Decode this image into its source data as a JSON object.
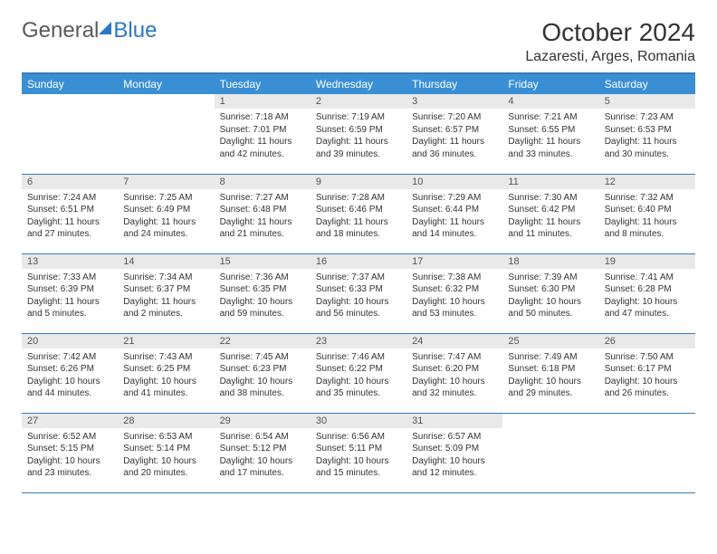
{
  "logo": {
    "part1": "General",
    "part2": "Blue"
  },
  "title": "October 2024",
  "location": "Lazaresti, Arges, Romania",
  "day_headers": [
    "Sunday",
    "Monday",
    "Tuesday",
    "Wednesday",
    "Thursday",
    "Friday",
    "Saturday"
  ],
  "colors": {
    "header_bg": "#3a8fd4",
    "header_text": "#ffffff",
    "rule": "#3a7ab8",
    "daynum_bg": "#e9e9e9",
    "logo_blue": "#2b78c5"
  },
  "weeks": [
    [
      {
        "n": "",
        "sr": "",
        "ss": "",
        "dl": "",
        "empty": true
      },
      {
        "n": "",
        "sr": "",
        "ss": "",
        "dl": "",
        "empty": true
      },
      {
        "n": "1",
        "sr": "Sunrise: 7:18 AM",
        "ss": "Sunset: 7:01 PM",
        "dl": "Daylight: 11 hours and 42 minutes."
      },
      {
        "n": "2",
        "sr": "Sunrise: 7:19 AM",
        "ss": "Sunset: 6:59 PM",
        "dl": "Daylight: 11 hours and 39 minutes."
      },
      {
        "n": "3",
        "sr": "Sunrise: 7:20 AM",
        "ss": "Sunset: 6:57 PM",
        "dl": "Daylight: 11 hours and 36 minutes."
      },
      {
        "n": "4",
        "sr": "Sunrise: 7:21 AM",
        "ss": "Sunset: 6:55 PM",
        "dl": "Daylight: 11 hours and 33 minutes."
      },
      {
        "n": "5",
        "sr": "Sunrise: 7:23 AM",
        "ss": "Sunset: 6:53 PM",
        "dl": "Daylight: 11 hours and 30 minutes."
      }
    ],
    [
      {
        "n": "6",
        "sr": "Sunrise: 7:24 AM",
        "ss": "Sunset: 6:51 PM",
        "dl": "Daylight: 11 hours and 27 minutes."
      },
      {
        "n": "7",
        "sr": "Sunrise: 7:25 AM",
        "ss": "Sunset: 6:49 PM",
        "dl": "Daylight: 11 hours and 24 minutes."
      },
      {
        "n": "8",
        "sr": "Sunrise: 7:27 AM",
        "ss": "Sunset: 6:48 PM",
        "dl": "Daylight: 11 hours and 21 minutes."
      },
      {
        "n": "9",
        "sr": "Sunrise: 7:28 AM",
        "ss": "Sunset: 6:46 PM",
        "dl": "Daylight: 11 hours and 18 minutes."
      },
      {
        "n": "10",
        "sr": "Sunrise: 7:29 AM",
        "ss": "Sunset: 6:44 PM",
        "dl": "Daylight: 11 hours and 14 minutes."
      },
      {
        "n": "11",
        "sr": "Sunrise: 7:30 AM",
        "ss": "Sunset: 6:42 PM",
        "dl": "Daylight: 11 hours and 11 minutes."
      },
      {
        "n": "12",
        "sr": "Sunrise: 7:32 AM",
        "ss": "Sunset: 6:40 PM",
        "dl": "Daylight: 11 hours and 8 minutes."
      }
    ],
    [
      {
        "n": "13",
        "sr": "Sunrise: 7:33 AM",
        "ss": "Sunset: 6:39 PM",
        "dl": "Daylight: 11 hours and 5 minutes."
      },
      {
        "n": "14",
        "sr": "Sunrise: 7:34 AM",
        "ss": "Sunset: 6:37 PM",
        "dl": "Daylight: 11 hours and 2 minutes."
      },
      {
        "n": "15",
        "sr": "Sunrise: 7:36 AM",
        "ss": "Sunset: 6:35 PM",
        "dl": "Daylight: 10 hours and 59 minutes."
      },
      {
        "n": "16",
        "sr": "Sunrise: 7:37 AM",
        "ss": "Sunset: 6:33 PM",
        "dl": "Daylight: 10 hours and 56 minutes."
      },
      {
        "n": "17",
        "sr": "Sunrise: 7:38 AM",
        "ss": "Sunset: 6:32 PM",
        "dl": "Daylight: 10 hours and 53 minutes."
      },
      {
        "n": "18",
        "sr": "Sunrise: 7:39 AM",
        "ss": "Sunset: 6:30 PM",
        "dl": "Daylight: 10 hours and 50 minutes."
      },
      {
        "n": "19",
        "sr": "Sunrise: 7:41 AM",
        "ss": "Sunset: 6:28 PM",
        "dl": "Daylight: 10 hours and 47 minutes."
      }
    ],
    [
      {
        "n": "20",
        "sr": "Sunrise: 7:42 AM",
        "ss": "Sunset: 6:26 PM",
        "dl": "Daylight: 10 hours and 44 minutes."
      },
      {
        "n": "21",
        "sr": "Sunrise: 7:43 AM",
        "ss": "Sunset: 6:25 PM",
        "dl": "Daylight: 10 hours and 41 minutes."
      },
      {
        "n": "22",
        "sr": "Sunrise: 7:45 AM",
        "ss": "Sunset: 6:23 PM",
        "dl": "Daylight: 10 hours and 38 minutes."
      },
      {
        "n": "23",
        "sr": "Sunrise: 7:46 AM",
        "ss": "Sunset: 6:22 PM",
        "dl": "Daylight: 10 hours and 35 minutes."
      },
      {
        "n": "24",
        "sr": "Sunrise: 7:47 AM",
        "ss": "Sunset: 6:20 PM",
        "dl": "Daylight: 10 hours and 32 minutes."
      },
      {
        "n": "25",
        "sr": "Sunrise: 7:49 AM",
        "ss": "Sunset: 6:18 PM",
        "dl": "Daylight: 10 hours and 29 minutes."
      },
      {
        "n": "26",
        "sr": "Sunrise: 7:50 AM",
        "ss": "Sunset: 6:17 PM",
        "dl": "Daylight: 10 hours and 26 minutes."
      }
    ],
    [
      {
        "n": "27",
        "sr": "Sunrise: 6:52 AM",
        "ss": "Sunset: 5:15 PM",
        "dl": "Daylight: 10 hours and 23 minutes."
      },
      {
        "n": "28",
        "sr": "Sunrise: 6:53 AM",
        "ss": "Sunset: 5:14 PM",
        "dl": "Daylight: 10 hours and 20 minutes."
      },
      {
        "n": "29",
        "sr": "Sunrise: 6:54 AM",
        "ss": "Sunset: 5:12 PM",
        "dl": "Daylight: 10 hours and 17 minutes."
      },
      {
        "n": "30",
        "sr": "Sunrise: 6:56 AM",
        "ss": "Sunset: 5:11 PM",
        "dl": "Daylight: 10 hours and 15 minutes."
      },
      {
        "n": "31",
        "sr": "Sunrise: 6:57 AM",
        "ss": "Sunset: 5:09 PM",
        "dl": "Daylight: 10 hours and 12 minutes."
      },
      {
        "n": "",
        "sr": "",
        "ss": "",
        "dl": "",
        "empty": true
      },
      {
        "n": "",
        "sr": "",
        "ss": "",
        "dl": "",
        "empty": true
      }
    ]
  ]
}
